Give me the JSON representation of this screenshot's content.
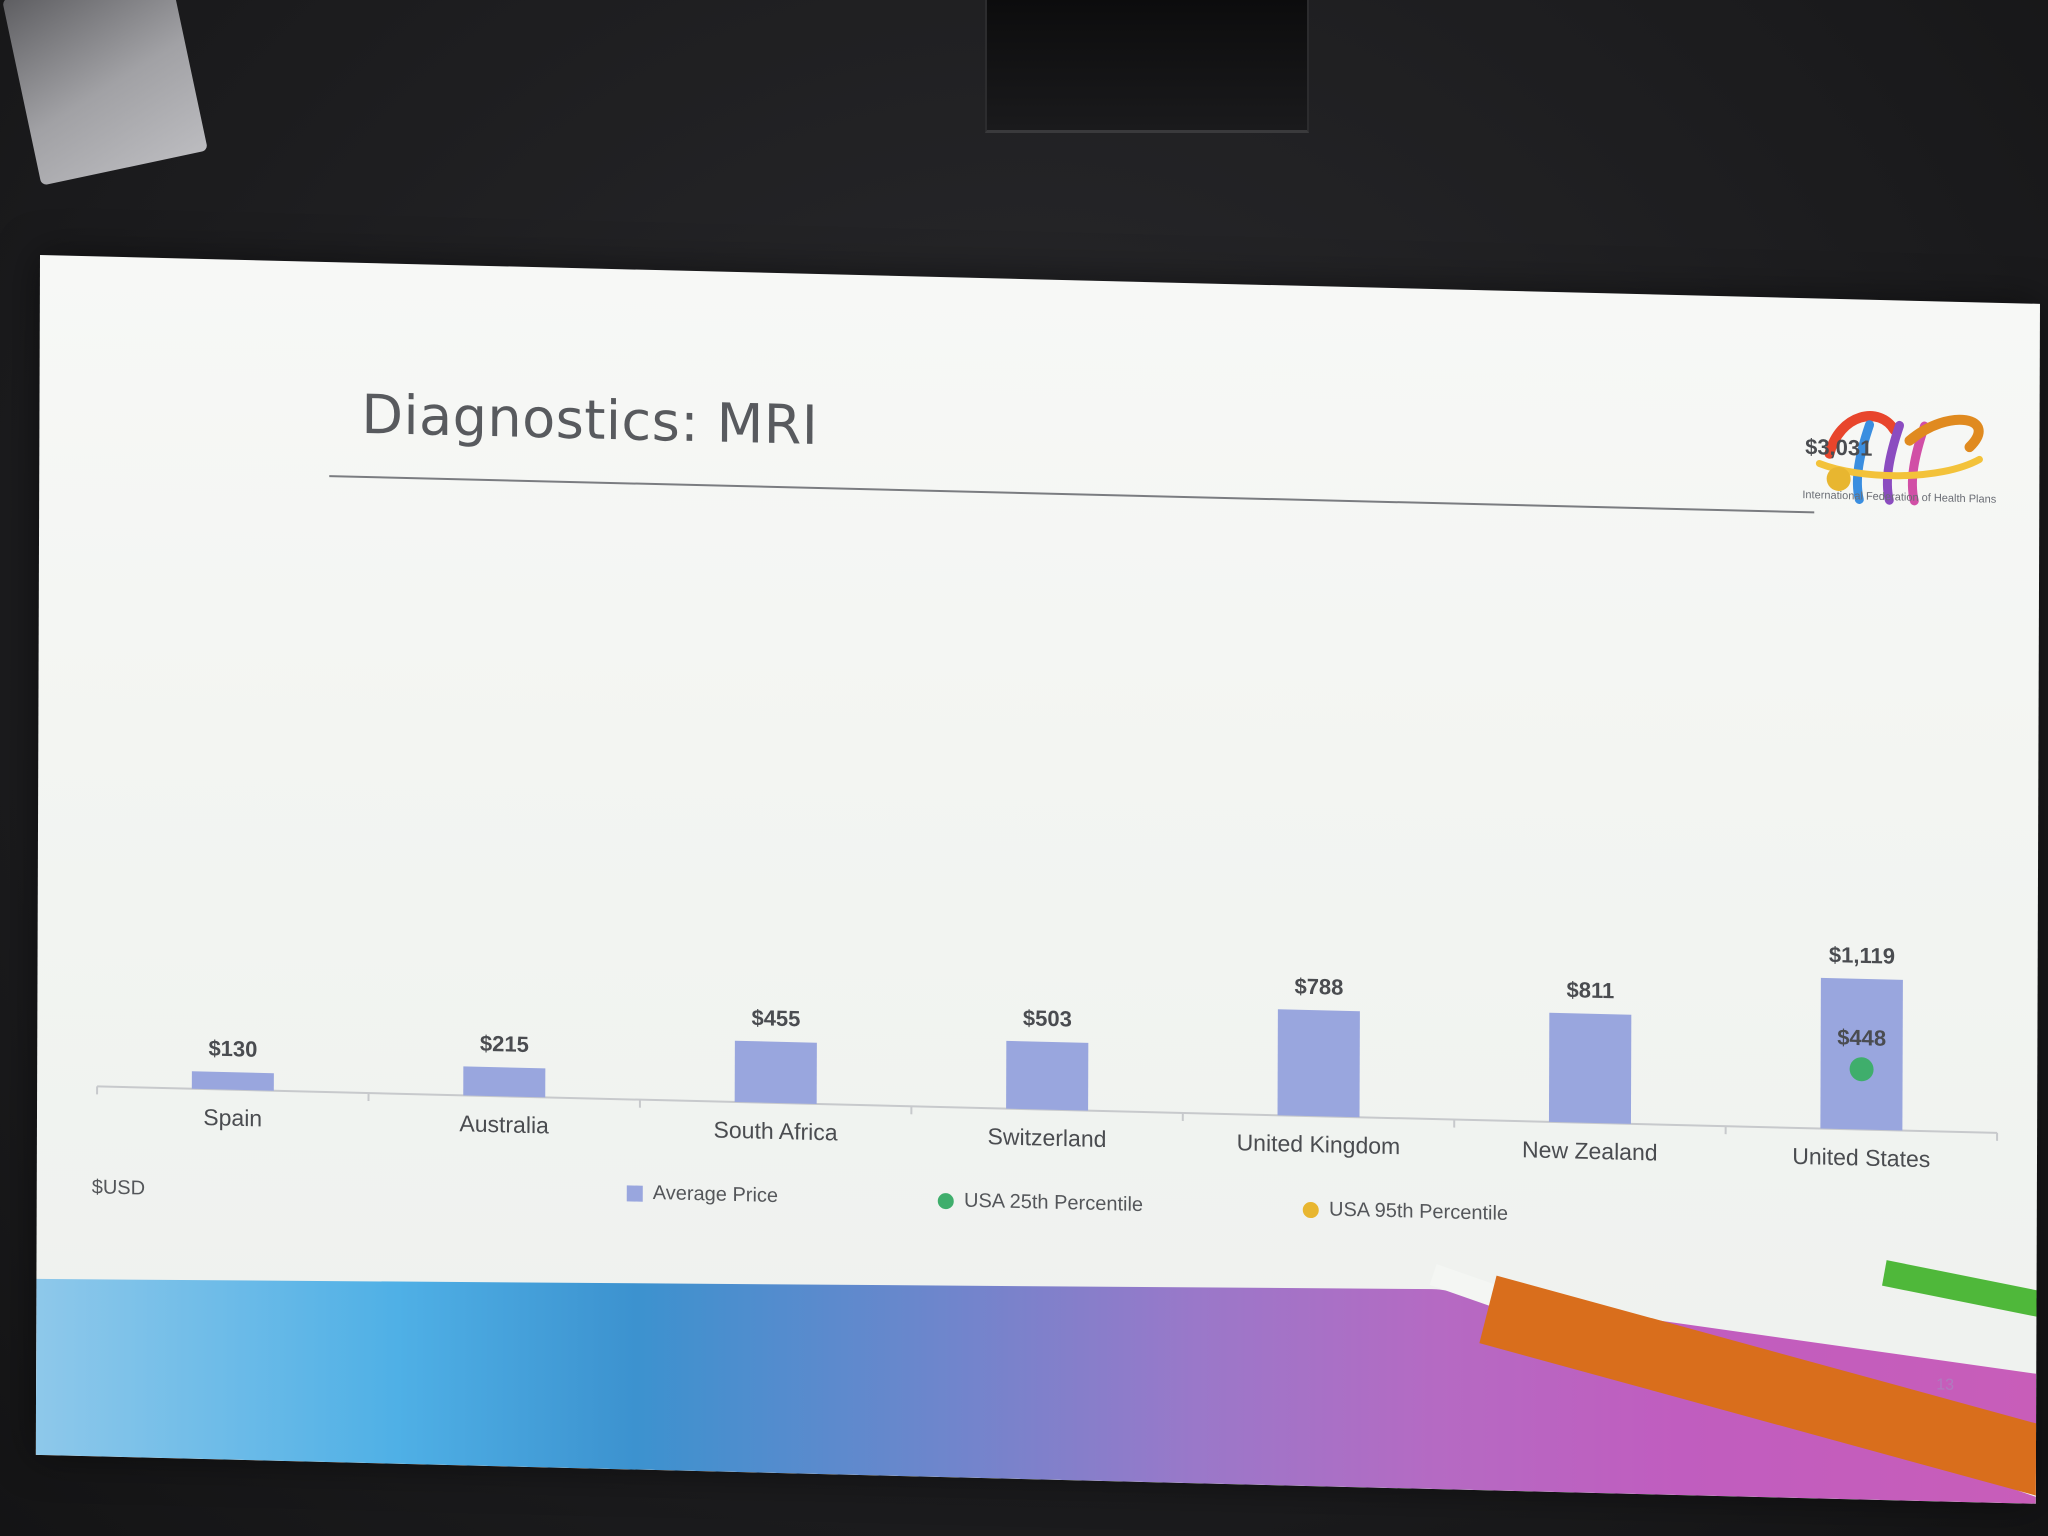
{
  "slide": {
    "title": "Diagnostics: MRI",
    "currency_note": "$USD",
    "page_number": "13",
    "logo_text": "International Federation of Health Plans"
  },
  "colors": {
    "bar": "#99a6de",
    "p25": "#3fae6c",
    "p95": "#e8b630",
    "axis": "#c7c9cc",
    "label": "#4a4c50"
  },
  "chart_data": {
    "type": "bar",
    "title": "Diagnostics: MRI",
    "ylabel": "$USD",
    "categories": [
      "Spain",
      "Australia",
      "South Africa",
      "Switzerland",
      "United Kingdom",
      "New Zealand",
      "United States"
    ],
    "series": [
      {
        "name": "Average Price",
        "type": "bar",
        "values": [
          130,
          215,
          455,
          503,
          788,
          811,
          1119
        ],
        "labels": [
          "$130",
          "$215",
          "$455",
          "$503",
          "$788",
          "$811",
          "$1,119"
        ]
      },
      {
        "name": "USA 25th Percentile",
        "type": "point",
        "category": "United States",
        "value": 448,
        "label": "$448"
      },
      {
        "name": "USA 95th Percentile",
        "type": "point",
        "category": "United States",
        "value": 3031,
        "label": "$3,031"
      }
    ],
    "ylim": [
      0,
      3200
    ],
    "grid": false,
    "legend": "bottom"
  }
}
